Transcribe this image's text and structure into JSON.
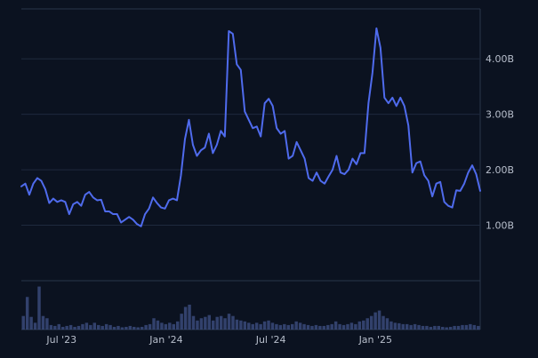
{
  "chart_data": {
    "type": "line",
    "title": "",
    "xlabel": "",
    "ylabel": "",
    "ylim": [
      0,
      4.9
    ],
    "y_ticks": [
      {
        "value": 1.0,
        "label": "1.00B"
      },
      {
        "value": 2.0,
        "label": "2.00B"
      },
      {
        "value": 3.0,
        "label": "3.00B"
      },
      {
        "value": 4.0,
        "label": "4.00B"
      }
    ],
    "x_ticks": [
      {
        "value": 10,
        "label": "Jul '23"
      },
      {
        "value": 36,
        "label": "Jan '24"
      },
      {
        "value": 62,
        "label": "Jul '24"
      },
      {
        "value": 88,
        "label": "Jan '25"
      }
    ],
    "xlim": [
      0,
      114
    ],
    "grid": true,
    "legend": "none",
    "colors": {
      "background": "#0b1220",
      "line": "#4f6bed",
      "volume": "#3a4a7a",
      "grid": "#1f2a3d",
      "text": "#b8bfcc"
    },
    "series": [
      {
        "values": [
          1.7,
          1.75,
          1.55,
          1.75,
          1.85,
          1.8,
          1.65,
          1.4,
          1.48,
          1.42,
          1.45,
          1.42,
          1.2,
          1.38,
          1.42,
          1.35,
          1.55,
          1.6,
          1.5,
          1.45,
          1.46,
          1.25,
          1.25,
          1.2,
          1.2,
          1.05,
          1.1,
          1.15,
          1.1,
          1.02,
          0.98,
          1.2,
          1.3,
          1.5,
          1.4,
          1.32,
          1.3,
          1.45,
          1.48,
          1.45,
          1.9,
          2.55,
          2.9,
          2.45,
          2.25,
          2.35,
          2.4,
          2.65,
          2.3,
          2.45,
          2.7,
          2.6,
          4.5,
          4.45,
          3.9,
          3.8,
          3.05,
          2.9,
          2.75,
          2.78,
          2.6,
          3.2,
          3.28,
          3.15,
          2.75,
          2.65,
          2.7,
          2.2,
          2.25,
          2.5,
          2.35,
          2.2,
          1.85,
          1.8,
          1.95,
          1.8,
          1.75,
          1.88,
          2.0,
          2.25,
          1.95,
          1.92,
          2.0,
          2.2,
          2.1,
          2.3,
          2.3,
          3.2,
          3.75,
          4.55,
          4.2,
          3.3,
          3.2,
          3.3,
          3.15,
          3.3,
          3.15,
          2.8,
          1.95,
          2.12,
          2.15,
          1.9,
          1.8,
          1.52,
          1.75,
          1.78,
          1.42,
          1.35,
          1.32,
          1.63,
          1.62,
          1.75,
          1.95,
          2.08,
          1.92,
          1.62
        ]
      }
    ],
    "volume": [
      0.3,
      0.72,
      0.28,
      0.15,
      0.95,
      0.3,
      0.25,
      0.1,
      0.08,
      0.12,
      0.06,
      0.08,
      0.1,
      0.06,
      0.08,
      0.12,
      0.15,
      0.1,
      0.15,
      0.1,
      0.08,
      0.12,
      0.1,
      0.06,
      0.08,
      0.05,
      0.06,
      0.08,
      0.06,
      0.05,
      0.06,
      0.1,
      0.12,
      0.25,
      0.2,
      0.15,
      0.12,
      0.15,
      0.12,
      0.18,
      0.35,
      0.5,
      0.55,
      0.3,
      0.2,
      0.25,
      0.28,
      0.32,
      0.2,
      0.28,
      0.3,
      0.25,
      0.35,
      0.3,
      0.22,
      0.2,
      0.18,
      0.15,
      0.12,
      0.15,
      0.12,
      0.18,
      0.2,
      0.15,
      0.12,
      0.1,
      0.12,
      0.1,
      0.12,
      0.18,
      0.15,
      0.12,
      0.1,
      0.08,
      0.1,
      0.08,
      0.08,
      0.1,
      0.12,
      0.18,
      0.12,
      0.1,
      0.12,
      0.15,
      0.12,
      0.18,
      0.2,
      0.25,
      0.3,
      0.38,
      0.42,
      0.3,
      0.25,
      0.18,
      0.15,
      0.14,
      0.12,
      0.12,
      0.1,
      0.12,
      0.1,
      0.08,
      0.08,
      0.06,
      0.08,
      0.08,
      0.06,
      0.05,
      0.06,
      0.08,
      0.08,
      0.1,
      0.1,
      0.12,
      0.1,
      0.08
    ]
  }
}
